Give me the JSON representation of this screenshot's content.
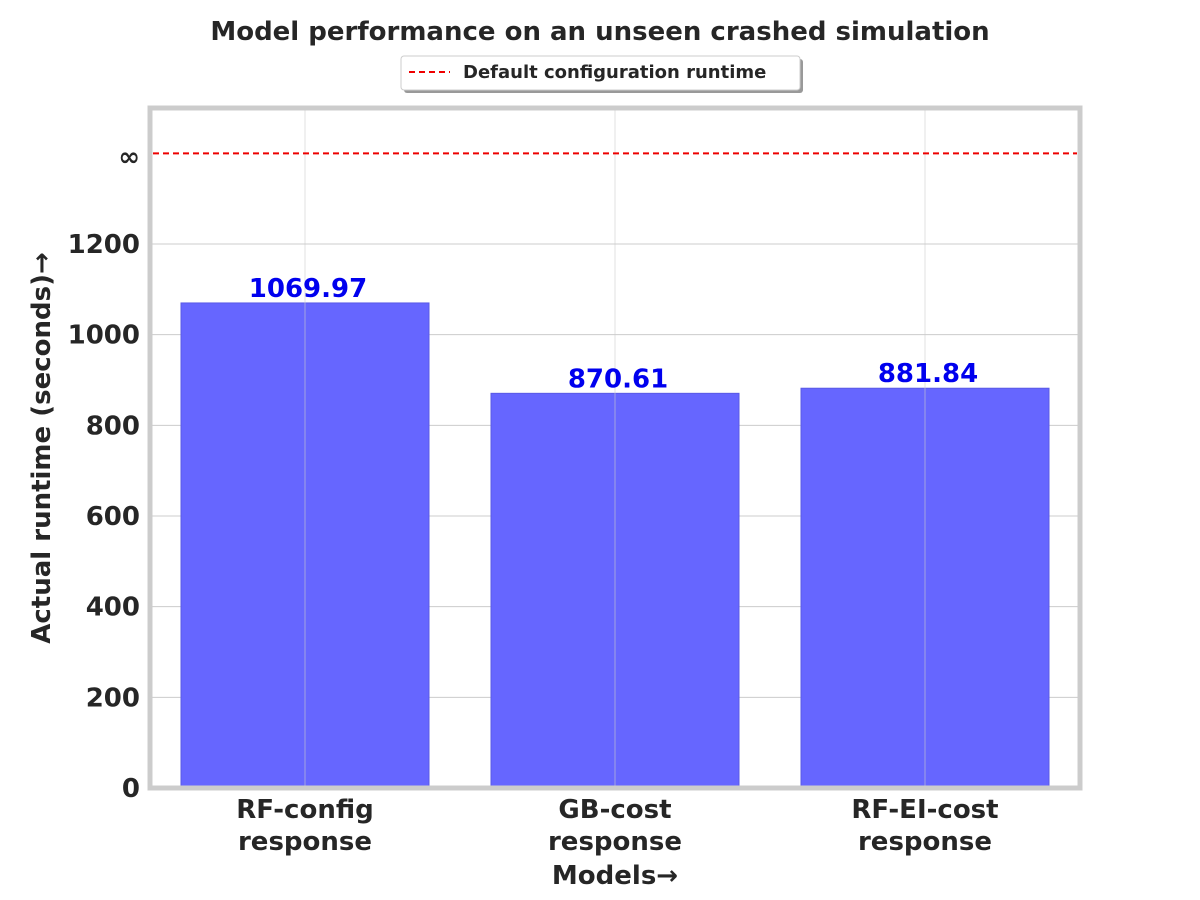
{
  "chart_data": {
    "type": "bar",
    "title": "Model performance on an unseen crashed simulation",
    "xlabel": "Models→",
    "ylabel": "Actual runtime (seconds)→",
    "categories": [
      [
        "RF-config",
        "response"
      ],
      [
        "GB-cost",
        "response"
      ],
      [
        "RF-EI-cost",
        "response"
      ]
    ],
    "values": [
      1069.97,
      870.61,
      881.84
    ],
    "value_labels": [
      "1069.97",
      "870.61",
      "881.84"
    ],
    "yticks": [
      0,
      200,
      400,
      600,
      800,
      1000,
      1200
    ],
    "infinity_tick_label": "∞",
    "ylim": [
      0,
      1500
    ],
    "reference_line": {
      "label": "Default configuration runtime",
      "position_value": 1400,
      "style": "dashed",
      "color": "#ee0000"
    },
    "bar_color": "#6666ff",
    "grid": true,
    "legend_placement": "top-center"
  }
}
